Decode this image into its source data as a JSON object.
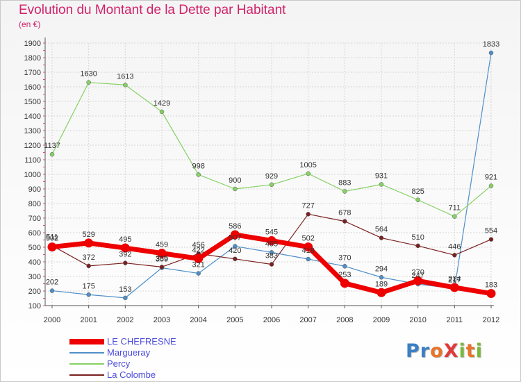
{
  "title": "Evolution du Montant de la Dette par Habitant",
  "subtitle": "(en €)",
  "logo": {
    "text": "ProXiti",
    "letters": [
      {
        "ch": "P",
        "color": "#3a7fc4"
      },
      {
        "ch": "r",
        "color": "#3a7fc4"
      },
      {
        "ch": "o",
        "color": "#e8732a"
      },
      {
        "ch": "X",
        "color": "#e03a3a"
      },
      {
        "ch": "i",
        "color": "#7ab83c"
      },
      {
        "ch": "t",
        "color": "#e8732a"
      },
      {
        "ch": "i",
        "color": "#7ab83c"
      }
    ]
  },
  "chart_data": {
    "type": "line",
    "title": "Evolution du Montant de la Dette par Habitant",
    "subtitle": "(en €)",
    "x": [
      "2000",
      "2001",
      "2002",
      "2003",
      "2004",
      "2005",
      "2006",
      "2007",
      "2008",
      "2009",
      "2010",
      "2011",
      "2012"
    ],
    "ylim": [
      100,
      1900
    ],
    "yticks": [
      100,
      200,
      300,
      400,
      500,
      600,
      700,
      800,
      900,
      1000,
      1100,
      1200,
      1300,
      1400,
      1500,
      1600,
      1700,
      1800,
      1900
    ],
    "grid": true,
    "legend_position": "bottom-left",
    "series": [
      {
        "name": "LE CHEFRESNE",
        "color": "#ee0000",
        "bold": true,
        "values": [
          502,
          529,
          495,
          459,
          422,
          586,
          545,
          502,
          253,
          189,
          270,
          224,
          183
        ]
      },
      {
        "name": "Margueray",
        "color": "#4f8fc8",
        "bold": false,
        "values": [
          202,
          175,
          153,
          359,
          321,
          507,
          465,
          419,
          370,
          294,
          247,
          217,
          1833
        ]
      },
      {
        "name": "Percy",
        "color": "#86d163",
        "bold": false,
        "values": [
          1137,
          1630,
          1613,
          1429,
          998,
          900,
          929,
          1005,
          883,
          931,
          825,
          711,
          921
        ]
      },
      {
        "name": "La Colombe",
        "color": "#7a2020",
        "bold": false,
        "values": [
          511,
          372,
          392,
          365,
          456,
          420,
          383,
          727,
          678,
          564,
          510,
          446,
          554
        ]
      }
    ]
  }
}
